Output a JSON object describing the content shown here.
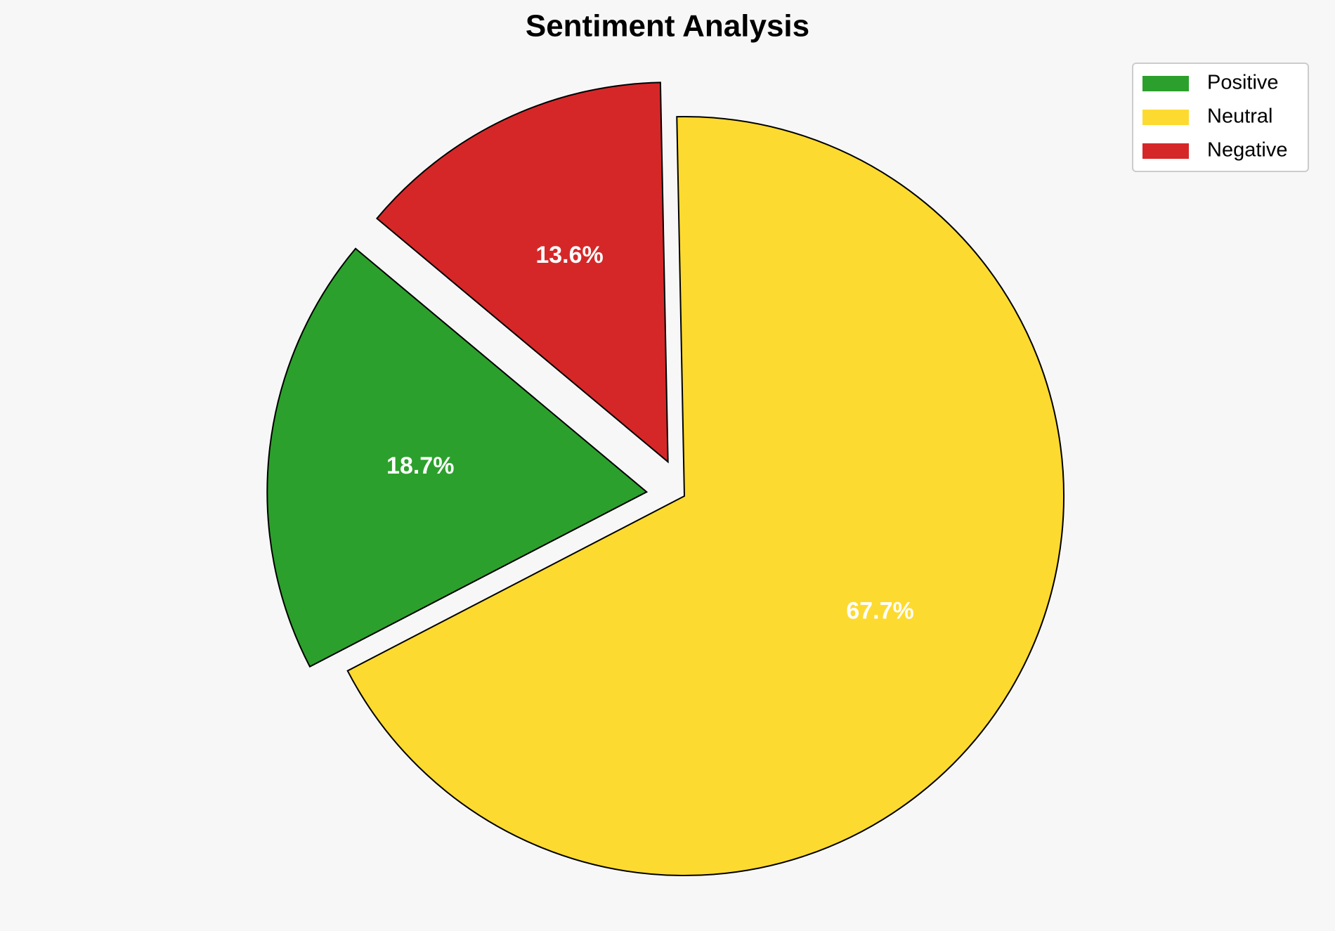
{
  "chart_data": {
    "type": "pie",
    "title": "Sentiment Analysis",
    "categories": [
      "Positive",
      "Neutral",
      "Negative"
    ],
    "values": [
      18.7,
      67.7,
      13.6
    ],
    "value_labels": [
      "18.7%",
      "67.7%",
      "13.6%"
    ],
    "colors": [
      "#2ca02c",
      "#fdda30",
      "#d62728"
    ],
    "legend": "upper right"
  }
}
